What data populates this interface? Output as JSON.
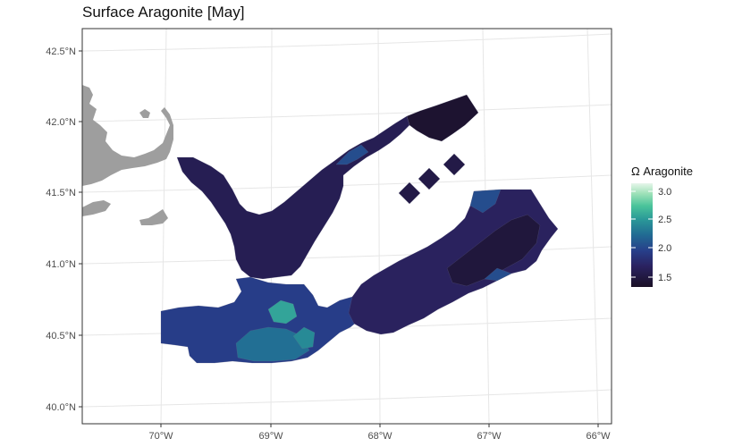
{
  "title": "Surface Aragonite [May]",
  "x_ticks": [
    "70°W",
    "69°W",
    "68°W",
    "67°W",
    "66°W"
  ],
  "y_ticks": [
    "42.5°N",
    "42.0°N",
    "41.5°N",
    "41.0°N",
    "40.5°N",
    "40.0°N"
  ],
  "legend": {
    "title": "Ω Aragonite",
    "ticks": [
      "3.0",
      "2.5",
      "2.0",
      "1.5"
    ],
    "range": [
      1.35,
      3.15
    ]
  },
  "colors": {
    "land": "#9e9e9e",
    "grid": "#e6e6e6",
    "panel_border": "#333333",
    "scale_stops": [
      "#1a1025",
      "#2a2260",
      "#273f8a",
      "#216a93",
      "#2a9898",
      "#49c39a",
      "#9ee1b8",
      "#e6f6ea"
    ]
  },
  "region_values": {
    "north_ne_lobe": 1.4,
    "north_arm": 1.55,
    "north_arm_tip": 1.95,
    "cape_channel": 1.75,
    "east_diamond_1": 1.5,
    "east_diamond_2": 1.5,
    "east_diamond_3": 1.5,
    "south_shelf": 1.85,
    "south_shelf_mid": 2.15,
    "south_center_patch": 2.45,
    "south_center_patch_2": 2.3,
    "east_arm": 1.6,
    "east_arm_core": 1.45,
    "east_arm_edge": 1.95
  }
}
